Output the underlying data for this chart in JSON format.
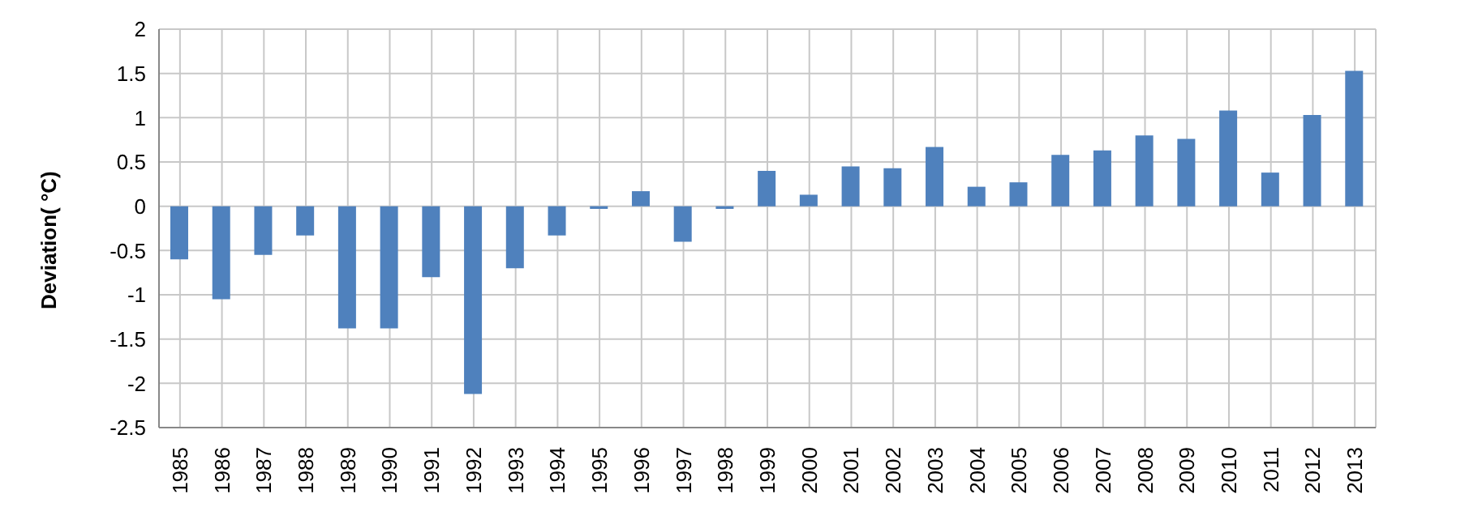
{
  "chart_data": {
    "type": "bar",
    "ylabel": "Deviation( °C)",
    "categories": [
      "1985",
      "1986",
      "1987",
      "1988",
      "1989",
      "1990",
      "1991",
      "1992",
      "1993",
      "1994",
      "1995",
      "1996",
      "1997",
      "1998",
      "1999",
      "2000",
      "2001",
      "2002",
      "2003",
      "2004",
      "2005",
      "2006",
      "2007",
      "2008",
      "2009",
      "2010",
      "2011",
      "2012",
      "2013"
    ],
    "values": [
      -0.6,
      -1.05,
      -0.55,
      -0.33,
      -1.38,
      -1.38,
      -0.8,
      -2.12,
      -0.7,
      -0.33,
      -0.03,
      0.17,
      -0.4,
      -0.03,
      0.4,
      0.13,
      0.45,
      0.43,
      0.67,
      0.22,
      0.27,
      0.58,
      0.63,
      0.8,
      0.76,
      1.08,
      0.38,
      1.03,
      1.53
    ],
    "color": "#4f81bd",
    "ylim": [
      -2.5,
      2
    ],
    "yticks": [
      -2.5,
      -2,
      -1.5,
      -1,
      -0.5,
      0,
      0.5,
      1,
      1.5,
      2
    ],
    "grid": true
  }
}
